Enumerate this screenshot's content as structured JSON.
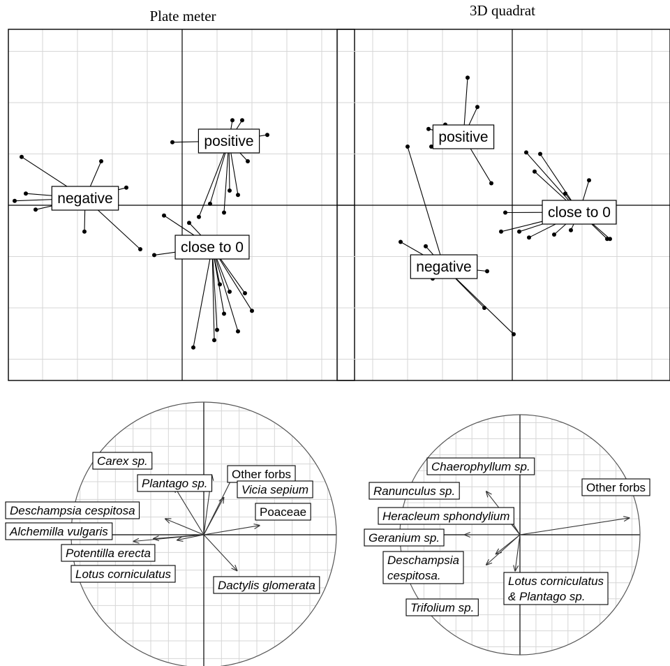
{
  "chart_data": [
    {
      "type": "scatter",
      "title": "Plate meter",
      "grid": true,
      "groups": [
        {
          "name": "positive",
          "points": [
            [
              0.36,
              0.58
            ],
            [
              0.43,
              0.58
            ],
            [
              0.61,
              0.48
            ],
            [
              -0.07,
              0.43
            ],
            [
              0.47,
              0.3
            ],
            [
              0.34,
              0.1
            ],
            [
              0.12,
              -0.08
            ],
            [
              0.3,
              -0.05
            ],
            [
              0.4,
              0.07
            ],
            [
              0.2,
              0.01
            ]
          ]
        },
        {
          "name": "negative",
          "points": [
            [
              -1.15,
              0.33
            ],
            [
              -0.58,
              0.3
            ],
            [
              -1.2,
              0.03
            ],
            [
              -0.4,
              0.12
            ],
            [
              -1.05,
              -0.03
            ],
            [
              -0.7,
              -0.18
            ],
            [
              -0.3,
              -0.3
            ],
            [
              -1.12,
              0.08
            ]
          ]
        },
        {
          "name": "close to 0",
          "points": [
            [
              -0.13,
              -0.07
            ],
            [
              0.05,
              -0.12
            ],
            [
              -0.2,
              -0.34
            ],
            [
              0.27,
              -0.54
            ],
            [
              0.34,
              -0.59
            ],
            [
              0.45,
              -0.6
            ],
            [
              0.3,
              -0.74
            ],
            [
              0.25,
              -0.85
            ],
            [
              0.23,
              -0.92
            ],
            [
              0.08,
              -0.97
            ],
            [
              0.4,
              -0.86
            ],
            [
              0.5,
              -0.72
            ]
          ]
        }
      ]
    },
    {
      "type": "scatter",
      "title": "3D quadrat",
      "grid": true,
      "groups": [
        {
          "name": "positive",
          "points": [
            [
              -0.32,
              0.87
            ],
            [
              -0.25,
              0.67
            ],
            [
              -0.48,
              0.55
            ],
            [
              -0.6,
              0.52
            ],
            [
              -0.58,
              0.4
            ],
            [
              -0.15,
              0.15
            ]
          ]
        },
        {
          "name": "negative",
          "points": [
            [
              -0.75,
              0.4
            ],
            [
              -0.8,
              -0.25
            ],
            [
              -0.62,
              -0.28
            ],
            [
              -0.57,
              -0.5
            ],
            [
              -0.18,
              -0.45
            ],
            [
              -0.2,
              -0.7
            ],
            [
              0.01,
              -0.88
            ]
          ]
        },
        {
          "name": "close to 0",
          "points": [
            [
              0.1,
              0.36
            ],
            [
              0.2,
              0.35
            ],
            [
              0.16,
              0.23
            ],
            [
              0.55,
              0.17
            ],
            [
              0.38,
              0.08
            ],
            [
              -0.05,
              -0.05
            ],
            [
              0.45,
              -0.04
            ],
            [
              0.62,
              -0.07
            ],
            [
              0.58,
              -0.12
            ],
            [
              0.42,
              -0.17
            ],
            [
              0.3,
              -0.2
            ],
            [
              0.12,
              -0.22
            ],
            [
              0.05,
              -0.18
            ],
            [
              0.68,
              -0.23
            ],
            [
              -0.08,
              -0.18
            ],
            [
              0.7,
              -0.23
            ]
          ]
        }
      ]
    },
    {
      "type": "vectors",
      "title": "",
      "vectors": [
        {
          "name": "Carex sp.",
          "x": -0.22,
          "y": 0.36
        },
        {
          "name": "Plantago sp.",
          "x": 0.06,
          "y": 0.45
        },
        {
          "name": "Other forbs",
          "x": 0.25,
          "y": 0.5
        },
        {
          "name": "Vicia sepium",
          "x": 0.15,
          "y": 0.28
        },
        {
          "name": "Poaceae",
          "x": 0.42,
          "y": 0.07
        },
        {
          "name": "Deschampsia cespitosa",
          "x": -0.29,
          "y": 0.12
        },
        {
          "name": "Alchemilla vulgaris",
          "x": -0.53,
          "y": -0.05
        },
        {
          "name": "Potentilla erecta",
          "x": -0.38,
          "y": -0.03
        },
        {
          "name": "Lotus corniculatus",
          "x": -0.2,
          "y": -0.04
        },
        {
          "name": "Dactylis glomerata",
          "x": 0.25,
          "y": -0.27
        }
      ]
    },
    {
      "type": "vectors",
      "title": "",
      "vectors": [
        {
          "name": "Chaerophyllum sp.",
          "x": -0.28,
          "y": 0.36
        },
        {
          "name": "Ranunculus sp.",
          "x": -0.17,
          "y": 0.21
        },
        {
          "name": "Heracleum sphondylium",
          "x": -0.1,
          "y": 0.16
        },
        {
          "name": "Geranium sp.",
          "x": -0.46,
          "y": 0.0
        },
        {
          "name": "Deschampsia cespitosa.",
          "x": -0.28,
          "y": -0.25
        },
        {
          "name": "Trifolium sp.",
          "x": -0.2,
          "y": -0.16
        },
        {
          "name": "Other forbs",
          "x": 0.91,
          "y": 0.14
        },
        {
          "name": "Lotus corniculatus & Plantago sp.",
          "x": -0.04,
          "y": -0.3
        }
      ]
    }
  ]
}
